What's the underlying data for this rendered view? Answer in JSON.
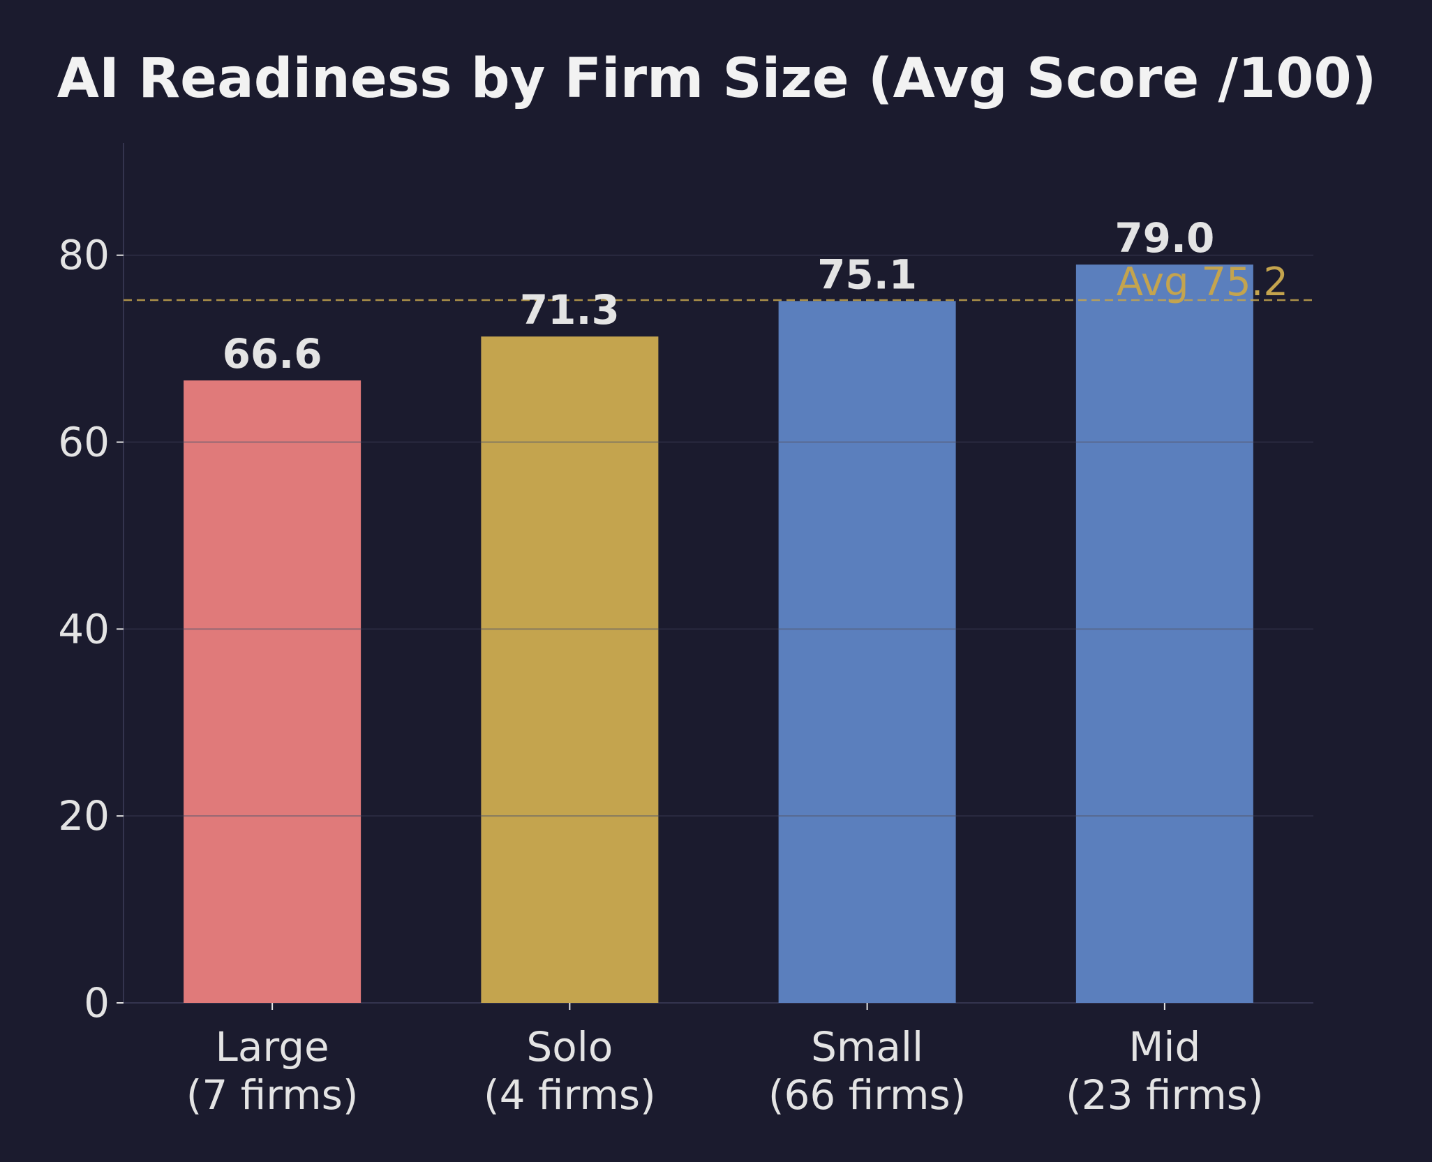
{
  "chart_data": {
    "type": "bar",
    "title": "AI Readiness by Firm Size (Avg Score /100)",
    "xlabel": "",
    "ylabel": "",
    "categories": [
      [
        "Large",
        "(7 firms)"
      ],
      [
        "Solo",
        "(4 firms)"
      ],
      [
        "Small",
        "(66 firms)"
      ],
      [
        "Mid",
        "(23 firms)"
      ]
    ],
    "values": [
      66.6,
      71.3,
      75.1,
      79.0
    ],
    "value_labels": [
      "66.6",
      "71.3",
      "75.1",
      "79.0"
    ],
    "bar_colors": [
      "#e07a7a",
      "#c4a44e",
      "#5b7fbd",
      "#5b7fbd"
    ],
    "ylim": [
      0,
      92
    ],
    "yticks": [
      0,
      20,
      40,
      60,
      80
    ],
    "grid": true,
    "reference_line": {
      "value": 75.2,
      "label": "Avg 75.2",
      "color": "#c4a44e",
      "style": "dashed"
    },
    "colors": {
      "background": "#1b1b2e",
      "text": "#e4e4e4",
      "title": "#f2f2f2",
      "grid": "#2a2a40",
      "axis": "#34344e"
    }
  }
}
